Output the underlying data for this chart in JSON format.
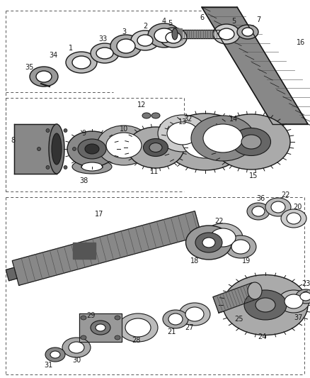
{
  "bg_color": "#ffffff",
  "line_color": "#1a1a1a",
  "gray1": "#888888",
  "gray2": "#aaaaaa",
  "gray3": "#cccccc",
  "gray4": "#555555",
  "white": "#ffffff"
}
